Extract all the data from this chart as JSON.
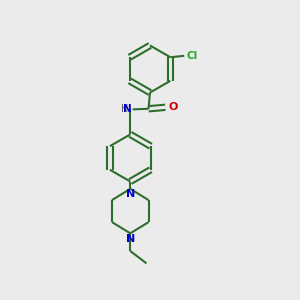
{
  "background_color": "#ebebeb",
  "bond_color": "#2d6e2d",
  "bond_width": 1.5,
  "atom_colors": {
    "N": "#0000cc",
    "O": "#cc0000",
    "Cl": "#22aa22",
    "H": "#555555"
  },
  "figsize": [
    3.0,
    3.0
  ],
  "dpi": 100,
  "xlim": [
    0,
    10
  ],
  "ylim": [
    0,
    10
  ]
}
